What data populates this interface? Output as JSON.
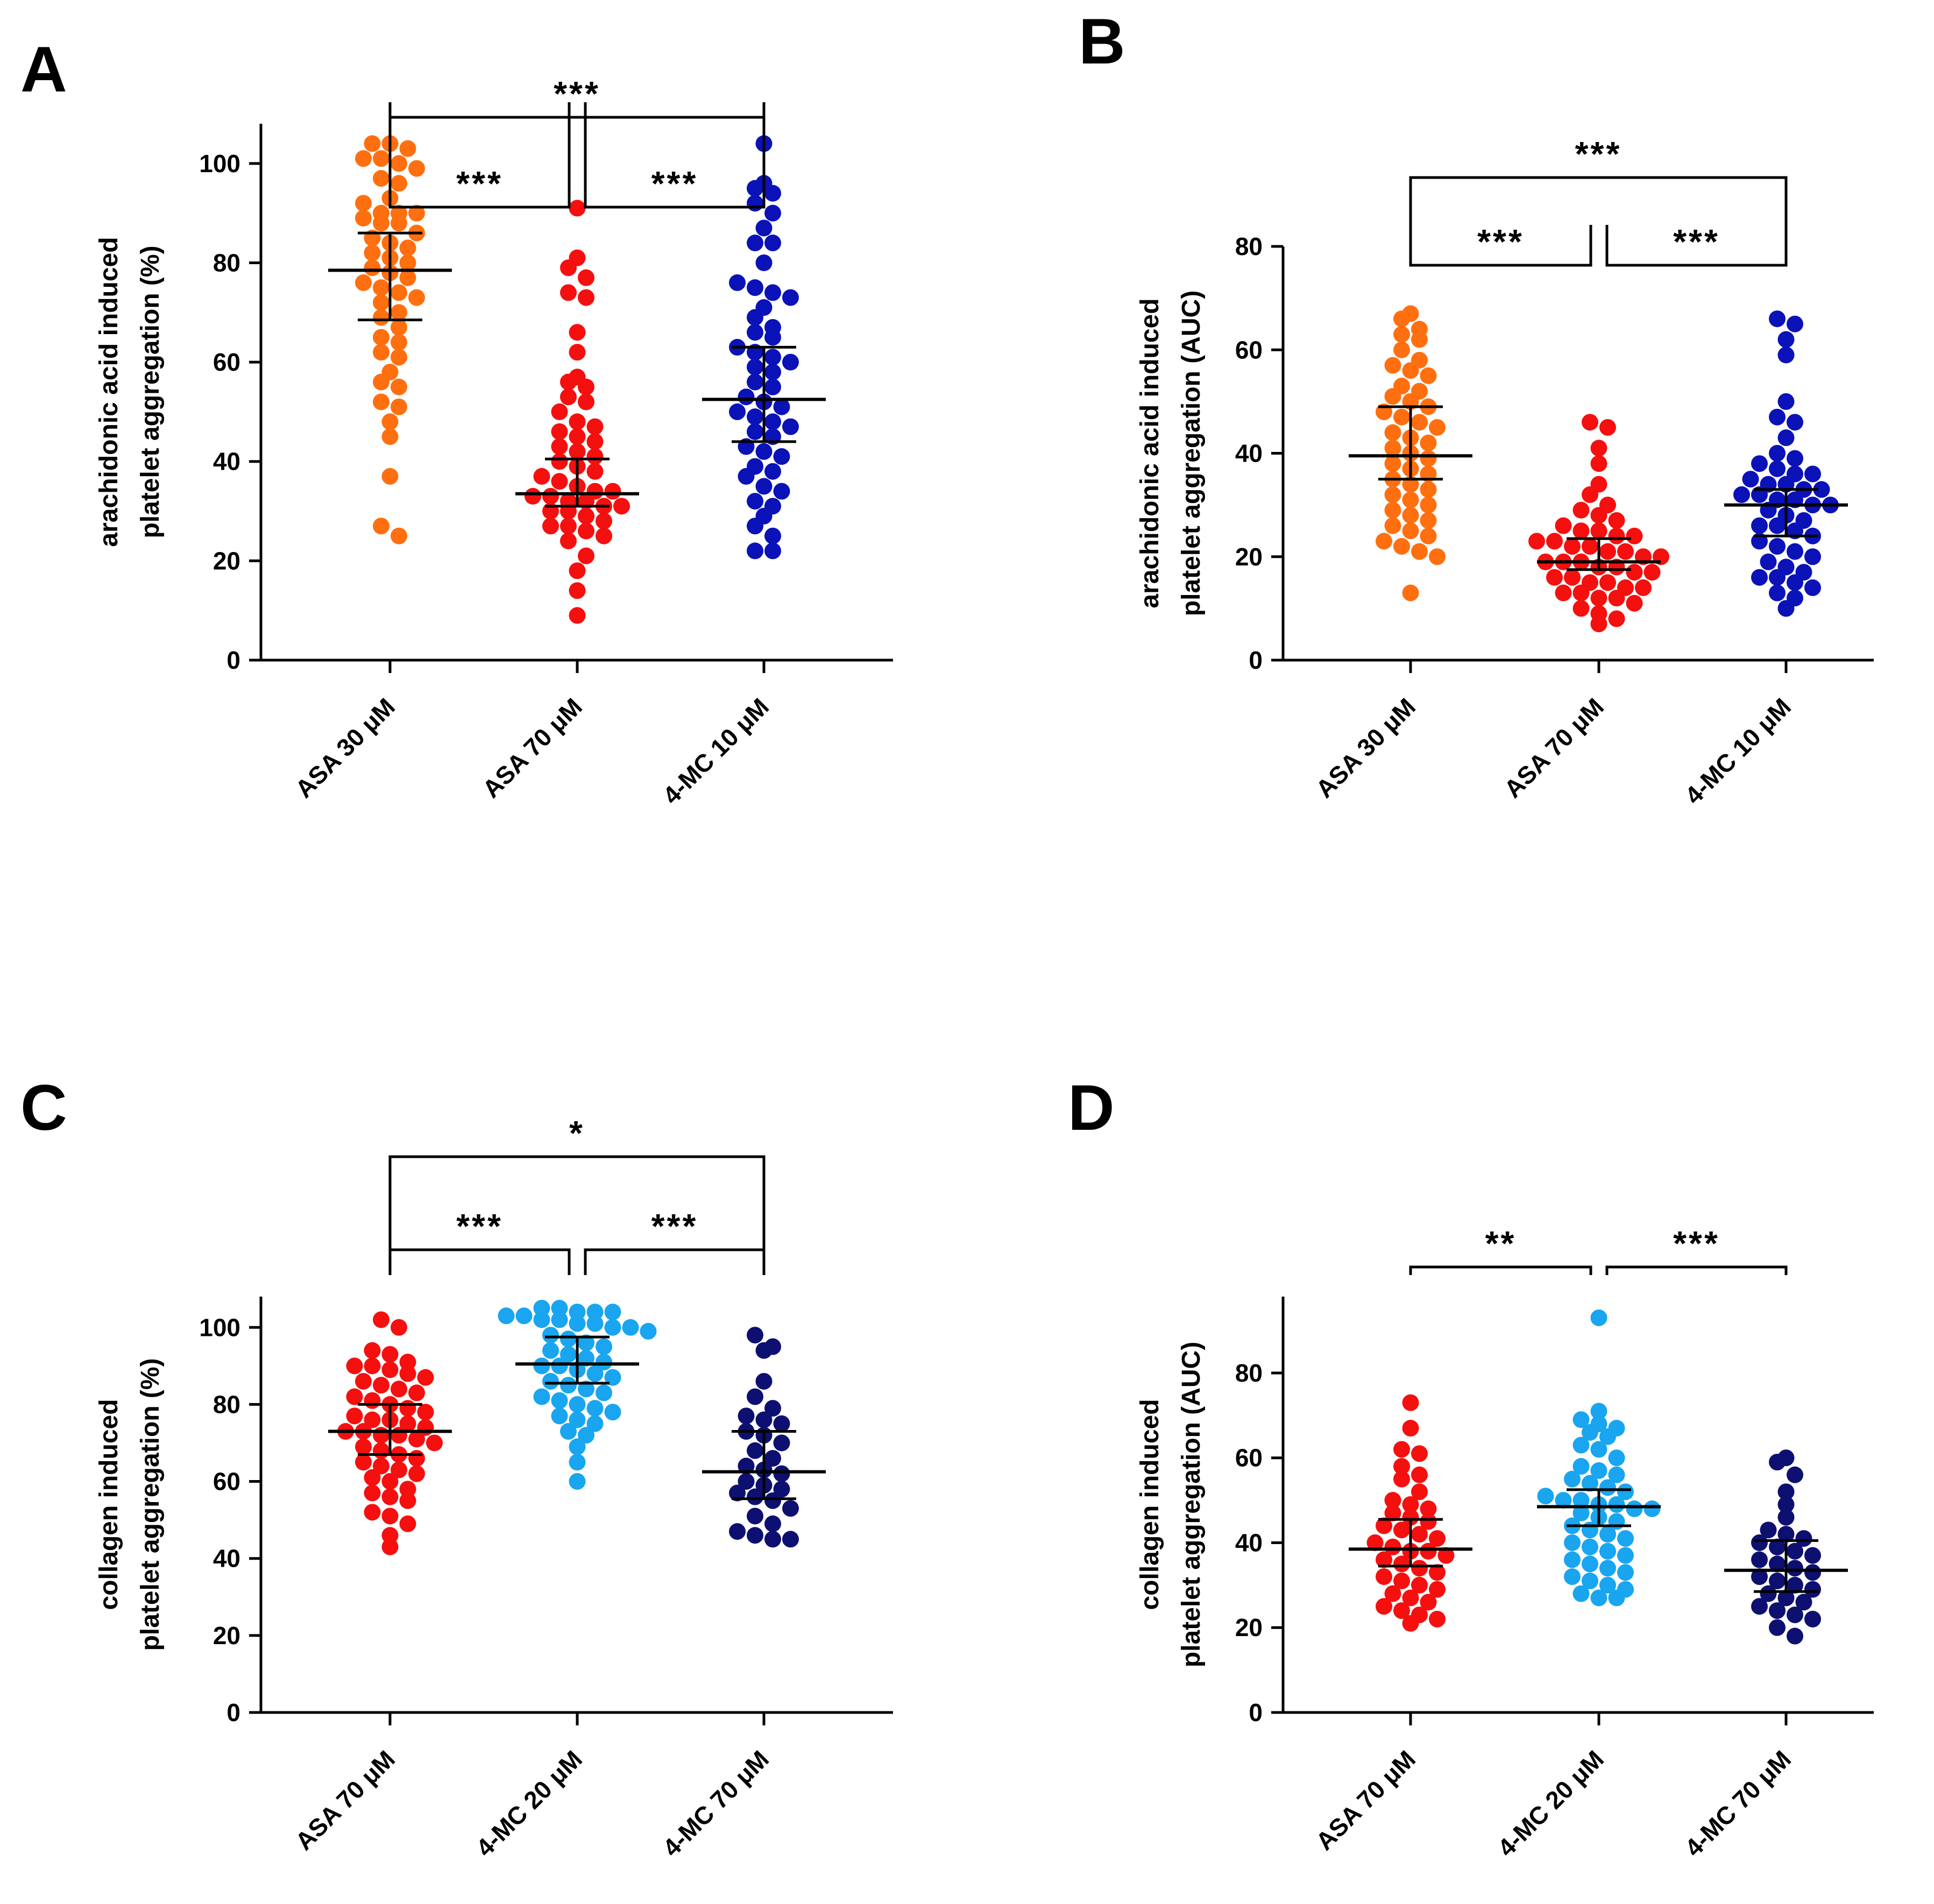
{
  "chart_data": [
    {
      "id": "A",
      "type": "scatter",
      "panel_label": "A",
      "ylabel_lines": [
        "arachidonic acid induced",
        "platelet aggregation (%)"
      ],
      "ylim": [
        0,
        108
      ],
      "yticks": [
        0,
        20,
        40,
        60,
        80,
        100
      ],
      "categories": [
        "ASA 30 μM",
        "ASA 70 μM",
        "4-MC 10 μM"
      ],
      "series": [
        {
          "color": "#ff6f0f",
          "median": 78.5,
          "q1": 68.5,
          "q3": 86,
          "values": [
            104,
            104,
            103,
            101,
            101,
            100,
            99,
            97,
            96,
            93,
            92,
            90,
            90,
            90,
            89,
            88,
            88,
            86,
            85,
            84,
            83,
            82,
            81,
            80,
            79,
            78,
            77,
            76,
            75,
            74,
            73,
            72,
            70,
            69,
            67,
            65,
            64,
            62,
            61,
            58,
            56,
            55,
            52,
            51,
            48,
            45,
            37,
            27,
            25
          ]
        },
        {
          "color": "#f50f0f",
          "median": 33.5,
          "q1": 31,
          "q3": 40.5,
          "values": [
            91,
            81,
            79,
            77,
            74,
            73,
            66,
            62,
            57,
            56,
            55,
            53,
            52,
            50,
            48,
            47,
            46,
            45,
            44,
            43,
            42,
            41,
            40,
            39,
            38,
            37,
            36,
            35,
            34,
            34,
            33,
            33,
            32,
            32,
            31,
            31,
            30,
            30,
            29,
            28,
            27,
            27,
            26,
            25,
            24,
            21,
            18,
            14,
            9
          ]
        },
        {
          "color": "#0a12b8",
          "median": 52.5,
          "q1": 44,
          "q3": 63,
          "values": [
            104,
            96,
            95,
            94,
            92,
            90,
            87,
            84,
            84,
            80,
            76,
            75,
            74,
            73,
            71,
            69,
            67,
            66,
            65,
            63,
            62,
            61,
            60,
            59,
            58,
            56,
            55,
            53,
            52,
            51,
            50,
            49,
            48,
            47,
            46,
            45,
            43,
            42,
            41,
            39,
            38,
            37,
            35,
            34,
            32,
            31,
            29,
            27,
            25,
            22,
            22
          ]
        }
      ],
      "brackets": [
        {
          "from": 0,
          "to": 1,
          "level": 1,
          "label": "***"
        },
        {
          "from": 1,
          "to": 2,
          "level": 1,
          "label": "***"
        },
        {
          "from": 0,
          "to": 2,
          "level": 2,
          "label": "***"
        }
      ]
    },
    {
      "id": "B",
      "type": "scatter",
      "panel_label": "B",
      "ylabel_lines": [
        "arachidonic acid induced",
        "platelet aggregation (AUC)"
      ],
      "ylim": [
        0,
        80
      ],
      "yticks": [
        0,
        20,
        40,
        60,
        80
      ],
      "categories": [
        "ASA 30 μM",
        "ASA 70 μM",
        "4-MC 10 μM"
      ],
      "series": [
        {
          "color": "#ff6f0f",
          "median": 39.5,
          "q1": 35,
          "q3": 49,
          "values": [
            67,
            66,
            64,
            63,
            62,
            60,
            58,
            57,
            56,
            55,
            53,
            52,
            51,
            50,
            49,
            48,
            47,
            46,
            45,
            44,
            43,
            42,
            41,
            40,
            39,
            38,
            37,
            36,
            35,
            34,
            33,
            32,
            31,
            30,
            29,
            28,
            27,
            26,
            25,
            24,
            23,
            22,
            21,
            20,
            13
          ]
        },
        {
          "color": "#f50f0f",
          "median": 19,
          "q1": 17.5,
          "q3": 23.5,
          "values": [
            46,
            45,
            41,
            38,
            34,
            32,
            30,
            29,
            28,
            27,
            26,
            25,
            25,
            24,
            24,
            23,
            23,
            22,
            22,
            21,
            21,
            20,
            20,
            19,
            19,
            19,
            18,
            18,
            17,
            17,
            16,
            16,
            15,
            15,
            14,
            14,
            13,
            13,
            12,
            12,
            11,
            10,
            9,
            8,
            7
          ]
        },
        {
          "color": "#0a12b8",
          "median": 30,
          "q1": 24,
          "q3": 33,
          "values": [
            66,
            65,
            62,
            59,
            50,
            47,
            46,
            43,
            40,
            39,
            38,
            37,
            36,
            36,
            35,
            34,
            34,
            33,
            33,
            32,
            32,
            31,
            31,
            30,
            30,
            29,
            28,
            27,
            26,
            26,
            25,
            24,
            23,
            22,
            21,
            20,
            19,
            18,
            17,
            16,
            16,
            15,
            14,
            13,
            12,
            10
          ]
        }
      ],
      "brackets": [
        {
          "from": 0,
          "to": 1,
          "level": 1,
          "label": "***"
        },
        {
          "from": 1,
          "to": 2,
          "level": 1,
          "label": "***"
        },
        {
          "from": 0,
          "to": 2,
          "level": 2,
          "label": "***"
        }
      ]
    },
    {
      "id": "C",
      "type": "scatter",
      "panel_label": "C",
      "ylabel_lines": [
        "collagen induced",
        "platelet aggregation (%)"
      ],
      "ylim": [
        0,
        108
      ],
      "yticks": [
        0,
        20,
        40,
        60,
        80,
        100
      ],
      "categories": [
        "ASA 70 μM",
        "4-MC 20 μM",
        "4-MC 70 μM"
      ],
      "series": [
        {
          "color": "#f50f0f",
          "median": 73,
          "q1": 67,
          "q3": 80,
          "values": [
            102,
            100,
            94,
            93,
            91,
            90,
            90,
            89,
            88,
            87,
            86,
            85,
            84,
            83,
            82,
            81,
            80,
            79,
            78,
            77,
            76,
            76,
            75,
            74,
            73,
            73,
            72,
            72,
            71,
            70,
            69,
            68,
            67,
            66,
            65,
            64,
            63,
            62,
            61,
            60,
            58,
            57,
            56,
            55,
            52,
            51,
            49,
            46,
            43
          ]
        },
        {
          "color": "#19a5ef",
          "median": 90.5,
          "q1": 85.5,
          "q3": 97.5,
          "values": [
            105,
            105,
            104,
            104,
            104,
            103,
            103,
            102,
            102,
            101,
            101,
            100,
            100,
            99,
            98,
            97,
            96,
            95,
            94,
            93,
            92,
            91,
            90,
            90,
            89,
            88,
            87,
            86,
            85,
            84,
            83,
            82,
            81,
            80,
            79,
            78,
            77,
            76,
            75,
            73,
            72,
            69,
            65,
            60
          ]
        },
        {
          "color": "#0d1070",
          "median": 62.5,
          "q1": 55.5,
          "q3": 73,
          "values": [
            98,
            95,
            94,
            86,
            82,
            79,
            77,
            76,
            75,
            73,
            72,
            70,
            68,
            66,
            64,
            63,
            62,
            60,
            59,
            58,
            57,
            56,
            55,
            53,
            51,
            49,
            47,
            46,
            45,
            45
          ]
        }
      ],
      "brackets": [
        {
          "from": 0,
          "to": 1,
          "level": 1,
          "label": "***"
        },
        {
          "from": 1,
          "to": 2,
          "level": 1,
          "label": "***"
        },
        {
          "from": 0,
          "to": 2,
          "level": 2,
          "label": "*"
        }
      ]
    },
    {
      "id": "D",
      "type": "scatter",
      "panel_label": "D",
      "ylabel_lines": [
        "collagen induced",
        "platelet aggregation (AUC)"
      ],
      "ylim": [
        0,
        98
      ],
      "yticks": [
        0,
        20,
        40,
        60,
        80
      ],
      "categories": [
        "ASA 70 μM",
        "4-MC 20 μM",
        "4-MC 70 μM"
      ],
      "series": [
        {
          "color": "#f50f0f",
          "median": 38.5,
          "q1": 34.5,
          "q3": 45.5,
          "values": [
            73,
            67,
            62,
            61,
            58,
            56,
            55,
            52,
            50,
            49,
            48,
            47,
            46,
            45,
            44,
            43,
            42,
            41,
            40,
            39,
            38,
            38,
            37,
            36,
            35,
            34,
            33,
            32,
            31,
            30,
            29,
            28,
            27,
            26,
            25,
            24,
            23,
            22,
            21
          ]
        },
        {
          "color": "#19a5ef",
          "median": 48.5,
          "q1": 44,
          "q3": 52.5,
          "values": [
            93,
            71,
            69,
            68,
            67,
            66,
            65,
            63,
            62,
            60,
            58,
            57,
            56,
            55,
            54,
            53,
            52,
            51,
            50,
            50,
            49,
            49,
            48,
            48,
            47,
            46,
            45,
            44,
            43,
            42,
            41,
            40,
            39,
            38,
            37,
            36,
            35,
            34,
            33,
            32,
            31,
            30,
            29,
            28,
            27,
            27
          ]
        },
        {
          "color": "#0d1070",
          "median": 33.5,
          "q1": 28.5,
          "q3": 40.5,
          "values": [
            60,
            59,
            56,
            52,
            49,
            46,
            43,
            42,
            41,
            40,
            39,
            38,
            37,
            36,
            35,
            34,
            33,
            32,
            31,
            30,
            29,
            28,
            27,
            26,
            25,
            24,
            23,
            22,
            20,
            18
          ]
        }
      ],
      "brackets": [
        {
          "from": 0,
          "to": 1,
          "level": 1,
          "label": "**"
        },
        {
          "from": 1,
          "to": 2,
          "level": 1,
          "label": "***"
        }
      ]
    }
  ]
}
